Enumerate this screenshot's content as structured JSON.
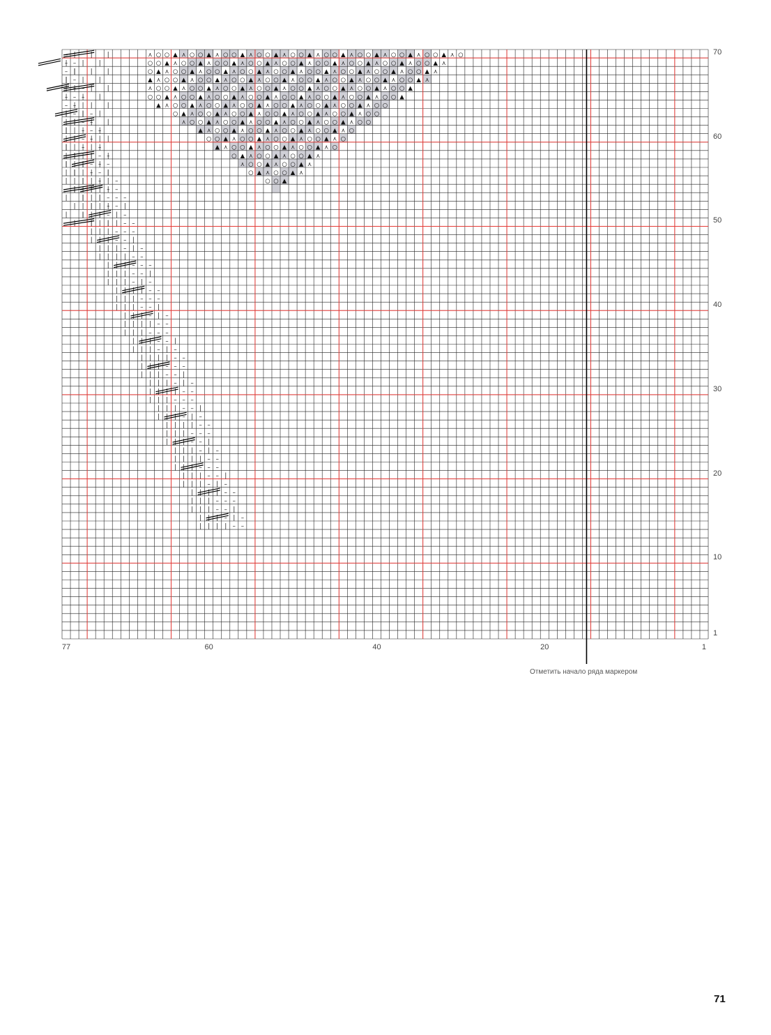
{
  "chart": {
    "columns": 77,
    "rows": 70,
    "row_axis_labels": [
      "1",
      "10",
      "20",
      "30",
      "40",
      "50",
      "60",
      "70"
    ],
    "column_axis_labels": [
      "77",
      "60",
      "40",
      "20",
      "1"
    ],
    "marker_column": 15,
    "marker_note": "Отметить начало ряда маркером",
    "colors": {
      "grid": "#222222",
      "major_grid": "#e53935",
      "shaded_cell": "#cfcfd6",
      "marker_line": "#000000"
    }
  },
  "page_number": "71"
}
